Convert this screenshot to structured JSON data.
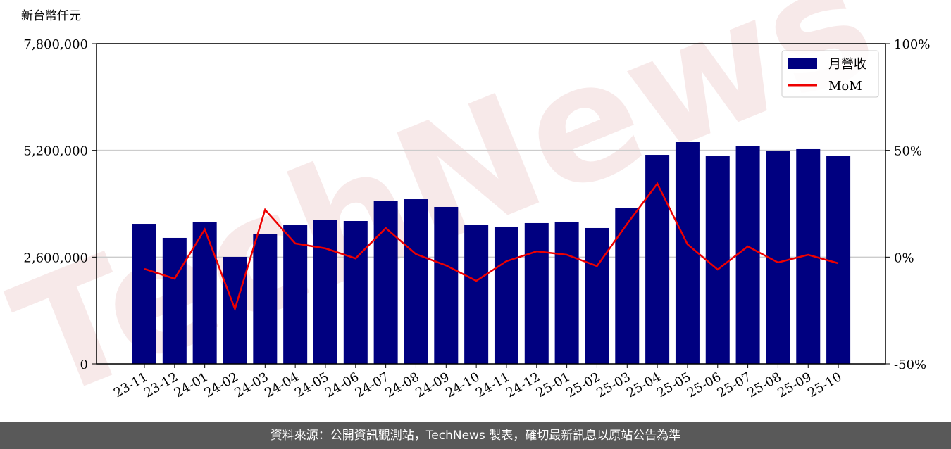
{
  "chart_data": {
    "type": "bar",
    "ylabel": "新台幣仟元",
    "watermark": "TechNews",
    "categories": [
      "23-11",
      "23-12",
      "24-01",
      "24-02",
      "24-03",
      "24-04",
      "24-05",
      "24-06",
      "24-07",
      "24-08",
      "24-09",
      "24-10",
      "24-11",
      "24-12",
      "25-01",
      "25-02",
      "25-03",
      "25-04",
      "25-05",
      "25-06",
      "25-07",
      "25-08",
      "25-09",
      "25-10"
    ],
    "series": [
      {
        "name": "月營收",
        "color": "#000080",
        "values": [
          3411000,
          3069000,
          3446000,
          2606000,
          3171000,
          3377000,
          3514000,
          3480000,
          3960000,
          4011000,
          3823000,
          3394000,
          3343000,
          3429000,
          3463000,
          3309000,
          3789000,
          5091000,
          5400000,
          5057000,
          5314000,
          5177000,
          5229000,
          5074000
        ]
      },
      {
        "name": "MoM",
        "type": "line",
        "axis": "y2",
        "color": "#ee0000",
        "values": [
          -5.5,
          -10.1,
          13.0,
          -24.3,
          22.2,
          6.4,
          4.1,
          -0.6,
          13.6,
          1.4,
          -3.9,
          -11.1,
          -1.9,
          2.7,
          1.1,
          -4.2,
          15.6,
          34.4,
          6.0,
          -5.8,
          5.0,
          -2.5,
          1.1,
          -2.9
        ]
      }
    ],
    "ylim": [
      0,
      7800000
    ],
    "yticks": [
      0,
      {
        "value": 2600000,
        "label": "2,600,000"
      },
      {
        "value": 5200000,
        "label": "5,200,000"
      },
      {
        "value": 7800000,
        "label": "7,800,000"
      }
    ],
    "y2lim": [
      -50,
      100
    ],
    "y2ticks": [
      {
        "value": -50,
        "label": "-50%"
      },
      {
        "value": 0,
        "label": "0%"
      },
      {
        "value": 50,
        "label": "50%"
      },
      {
        "value": 100,
        "label": "100%"
      }
    ],
    "grid": true,
    "legend": "upper right"
  },
  "footer": "資料來源：公開資訊觀測站，TechNews 製表，確切最新訊息以原站公告為準"
}
